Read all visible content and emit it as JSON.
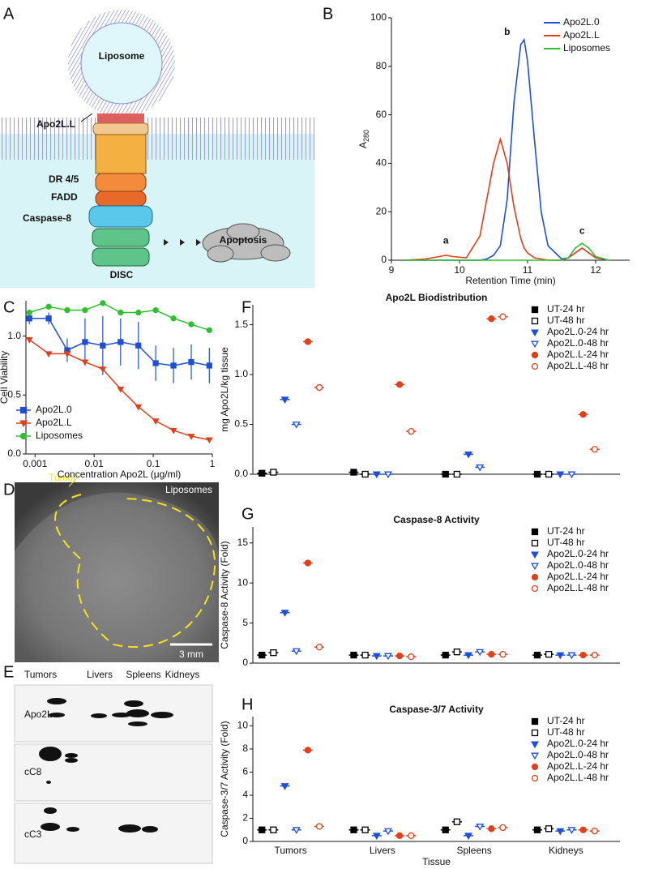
{
  "panels": [
    "A",
    "B",
    "C",
    "D",
    "E",
    "F",
    "G",
    "H"
  ],
  "diagram": {
    "liposome": "Liposome",
    "ligand": "Apo2L.L",
    "receptor": "DR 4/5",
    "adaptor": "FADD",
    "caspase": "Caspase-8",
    "outcome": "Apoptosis",
    "complex": "DISC"
  },
  "image": {
    "tumor": "Tumor",
    "label": "Liposomes",
    "scale_bar": "3 mm"
  },
  "blot": {
    "lanes": [
      "Tumors",
      "Livers",
      "Spleens",
      "Kidneys"
    ],
    "rows": [
      "Apo2L",
      "cC8",
      "cC3"
    ]
  },
  "chart_data": [
    {
      "type": "line",
      "xlabel": "Retention Time (min)",
      "ylabel": "A",
      "ylabel_subscript": "280",
      "x": [
        9.2,
        9.5,
        9.7,
        9.8,
        9.9,
        10.1,
        10.3,
        10.4,
        10.5,
        10.6,
        10.7,
        10.8,
        10.9,
        10.95,
        11,
        11.1,
        11.2,
        11.3,
        11.5,
        11.6,
        11.7,
        11.8,
        11.9,
        12,
        12.2
      ],
      "xlim": [
        9,
        12.5
      ],
      "xticks": [
        9,
        10,
        11,
        12
      ],
      "ylim": [
        0,
        100
      ],
      "yticks": [
        0,
        20,
        40,
        60,
        80,
        100
      ],
      "legend": "upper right",
      "annotations": [
        "a",
        "b",
        "c"
      ],
      "series": [
        {
          "name": "Apo2L.0",
          "color": "#1f4fd8",
          "values": [
            0,
            0,
            0,
            0,
            0,
            0,
            0,
            0.5,
            2,
            6,
            25,
            65,
            89,
            91,
            82,
            50,
            20,
            6,
            0.5,
            1,
            3,
            5,
            3,
            1,
            0
          ]
        },
        {
          "name": "Apo2L.L",
          "color": "#e0401c",
          "values": [
            0,
            0.5,
            1.5,
            2,
            1.5,
            1,
            10,
            25,
            40,
            50,
            40,
            22,
            9,
            5,
            3,
            1,
            0.5,
            0,
            0,
            1,
            3,
            5,
            3,
            1,
            0
          ]
        },
        {
          "name": "Liposomes",
          "color": "#2ec030",
          "values": [
            0,
            0,
            0,
            0,
            0,
            0,
            0,
            0,
            0,
            0,
            0,
            0,
            0,
            0,
            0,
            0,
            0,
            0,
            0,
            1,
            5,
            7,
            5,
            1.5,
            0
          ]
        }
      ]
    },
    {
      "type": "scatter",
      "xlog": true,
      "xlabel": "Concentration Apo2L (μg/ml)",
      "ylabel": "Cell Viability",
      "x": [
        0.0008,
        0.0017,
        0.0035,
        0.007,
        0.014,
        0.028,
        0.056,
        0.11,
        0.22,
        0.44,
        0.89
      ],
      "xlim": [
        0.0007,
        1
      ],
      "xticks": [
        0.001,
        0.01,
        0.1,
        1
      ],
      "ylim": [
        0,
        1.3
      ],
      "yticks": [
        {
          "value": 0,
          "label": "0.0"
        },
        {
          "value": 0.5,
          "label": "0.5"
        },
        {
          "value": 1,
          "label": "1.0"
        }
      ],
      "legend": "lower left",
      "series": [
        {
          "name": "Apo2L.0",
          "color": "#1f4fd8",
          "marker": "square",
          "values": [
            1.15,
            1.15,
            0.88,
            0.95,
            0.92,
            0.95,
            0.92,
            0.77,
            0.75,
            0.78,
            0.75
          ],
          "errors": [
            0.05,
            0.05,
            0.1,
            0.2,
            0.25,
            0.2,
            0.2,
            0.15,
            0.15,
            0.15,
            0.15
          ]
        },
        {
          "name": "Apo2L.L",
          "color": "#e0401c",
          "marker": "triangle",
          "values": [
            0.97,
            0.85,
            0.85,
            0.78,
            0.72,
            0.55,
            0.4,
            0.28,
            0.2,
            0.15,
            0.12
          ]
        },
        {
          "name": "Liposomes",
          "color": "#2ec030",
          "marker": "circle",
          "values": [
            1.2,
            1.25,
            1.22,
            1.22,
            1.28,
            1.2,
            1.2,
            1.22,
            1.15,
            1.1,
            1.05
          ]
        }
      ]
    },
    {
      "type": "dot",
      "title": "Apo2L Biodistribution",
      "ylabel": "mg Apo2L/kg tissue",
      "categories": [
        null,
        null,
        null,
        null
      ],
      "ylim": [
        0,
        1.7
      ],
      "yticks": [
        {
          "value": 0,
          "label": "0.0"
        },
        {
          "value": 0.5,
          "label": "0.5"
        },
        {
          "value": 1,
          "label": "1.0"
        },
        {
          "value": 1.5,
          "label": "1.5"
        }
      ],
      "legend": "upper right",
      "series": [
        {
          "name": "UT-24 hr",
          "color": "#000000",
          "marker": "square",
          "filled": true,
          "values": [
            0.01,
            0.02,
            0,
            0
          ]
        },
        {
          "name": "UT-48 hr",
          "color": "#000000",
          "marker": "square",
          "filled": false,
          "values": [
            0.02,
            0,
            0,
            0
          ]
        },
        {
          "name": "Apo2L.0-24 hr",
          "color": "#1f4fd8",
          "marker": "triangle",
          "filled": true,
          "values": [
            0.75,
            0,
            0.2,
            0
          ]
        },
        {
          "name": "Apo2L.0-48 hr",
          "color": "#1f4fd8",
          "marker": "triangle",
          "filled": false,
          "values": [
            0.5,
            0,
            0.07,
            0
          ]
        },
        {
          "name": "Apo2L.L-24 hr",
          "color": "#e0401c",
          "marker": "circle",
          "filled": true,
          "values": [
            1.33,
            0.9,
            1.56,
            0.6
          ]
        },
        {
          "name": "Apo2L.L-48 hr",
          "color": "#e0401c",
          "marker": "circle",
          "filled": false,
          "values": [
            0.87,
            0.43,
            1.58,
            0.25
          ]
        }
      ]
    },
    {
      "type": "dot",
      "title": "Caspase-8 Activity",
      "ylabel": "Caspase-8 Activity (Fold)",
      "categories": [
        null,
        null,
        null,
        null
      ],
      "ylim": [
        0,
        17
      ],
      "yticks": [
        0,
        5,
        10,
        15
      ],
      "legend": "upper right",
      "series": [
        {
          "name": "UT-24 hr",
          "color": "#000000",
          "marker": "square",
          "filled": true,
          "values": [
            1,
            1,
            1,
            1
          ]
        },
        {
          "name": "UT-48 hr",
          "color": "#000000",
          "marker": "square",
          "filled": false,
          "values": [
            1.3,
            1,
            1.4,
            1.1
          ]
        },
        {
          "name": "Apo2L.0-24 hr",
          "color": "#1f4fd8",
          "marker": "triangle",
          "filled": true,
          "values": [
            6.3,
            0.9,
            1,
            1
          ]
        },
        {
          "name": "Apo2L.0-48 hr",
          "color": "#1f4fd8",
          "marker": "triangle",
          "filled": false,
          "values": [
            1.5,
            0.9,
            1.4,
            1
          ]
        },
        {
          "name": "Apo2L.L-24 hr",
          "color": "#e0401c",
          "marker": "circle",
          "filled": true,
          "values": [
            12.5,
            0.9,
            1.1,
            1
          ]
        },
        {
          "name": "Apo2L.L-48 hr",
          "color": "#e0401c",
          "marker": "circle",
          "filled": false,
          "values": [
            2,
            0.8,
            1.1,
            1
          ]
        }
      ]
    },
    {
      "type": "dot",
      "title": "Caspase-3/7 Activity",
      "ylabel": "Caspase-3/7 Activity (Fold)",
      "xlabel": "Tissue",
      "categories": [
        "Tumors",
        "Livers",
        "Spleens",
        "Kidneys"
      ],
      "ylim": [
        0,
        10.8
      ],
      "yticks": [
        0,
        2,
        4,
        6,
        8,
        10
      ],
      "legend": "upper right",
      "series": [
        {
          "name": "UT-24 hr",
          "color": "#000000",
          "marker": "square",
          "filled": true,
          "values": [
            1,
            1,
            1,
            1
          ]
        },
        {
          "name": "UT-48 hr",
          "color": "#000000",
          "marker": "square",
          "filled": false,
          "values": [
            1,
            1,
            1.7,
            1.1
          ]
        },
        {
          "name": "Apo2L.0-24 hr",
          "color": "#1f4fd8",
          "marker": "triangle",
          "filled": true,
          "values": [
            4.8,
            0.5,
            0.5,
            0.9
          ]
        },
        {
          "name": "Apo2L.0-48 hr",
          "color": "#1f4fd8",
          "marker": "triangle",
          "filled": false,
          "values": [
            1,
            0.9,
            1.3,
            1
          ]
        },
        {
          "name": "Apo2L.L-24 hr",
          "color": "#e0401c",
          "marker": "circle",
          "filled": true,
          "values": [
            7.9,
            0.5,
            1.1,
            1
          ]
        },
        {
          "name": "Apo2L.L-48 hr",
          "color": "#e0401c",
          "marker": "circle",
          "filled": false,
          "values": [
            1.3,
            0.5,
            1.2,
            0.9
          ]
        }
      ]
    }
  ]
}
